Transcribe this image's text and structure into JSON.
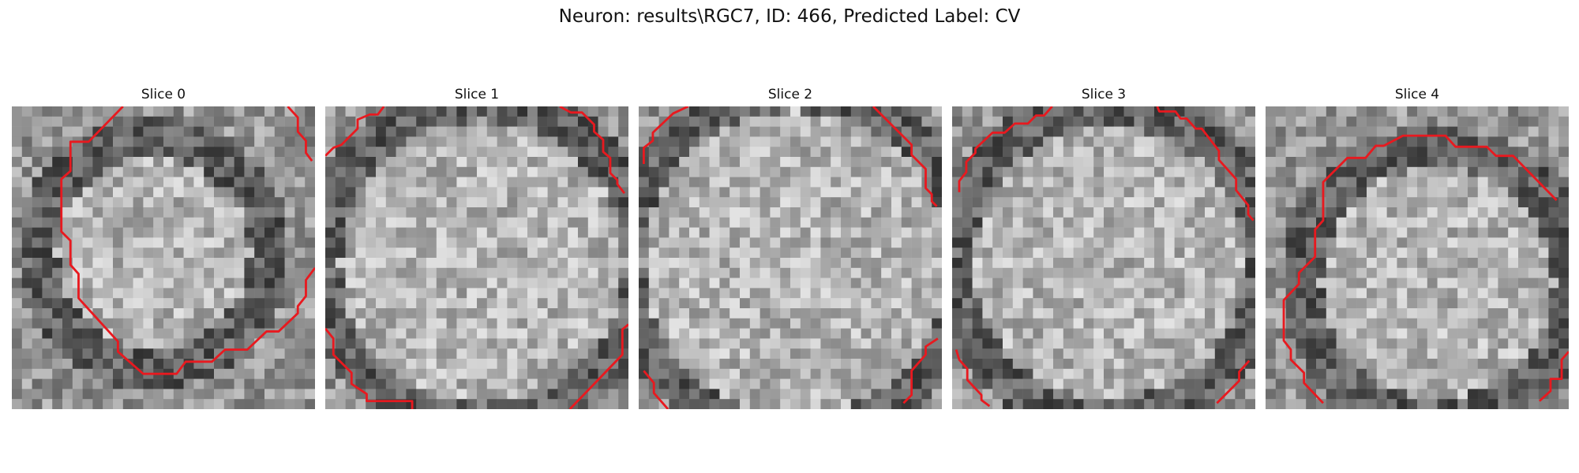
{
  "figure": {
    "title": "Neuron: results\\RGC7, ID: 466, Predicted Label: CV"
  },
  "grid_size": 30,
  "contour_color": "#e8191f",
  "slices": [
    {
      "title": "Slice 0",
      "contour_paths": [
        [
          [
            11,
            0
          ],
          [
            7.6,
            3.5
          ],
          [
            5.8,
            3.5
          ],
          [
            5.8,
            6.4
          ],
          [
            4.9,
            7.2
          ],
          [
            4.9,
            12.4
          ],
          [
            5.8,
            13.3
          ],
          [
            5.8,
            15.7
          ],
          [
            6.6,
            16.6
          ],
          [
            6.6,
            19
          ],
          [
            10.5,
            23.3
          ],
          [
            10.5,
            24.3
          ],
          [
            13,
            26.5
          ],
          [
            16.3,
            26.5
          ],
          [
            17.2,
            25.3
          ],
          [
            19.8,
            25.3
          ],
          [
            21.1,
            24.1
          ],
          [
            23.3,
            24.1
          ],
          [
            25.2,
            22.3
          ],
          [
            26.4,
            22.3
          ],
          [
            28.3,
            20.5
          ],
          [
            28.3,
            19.8
          ],
          [
            29.1,
            18.8
          ],
          [
            29.1,
            17.2
          ],
          [
            30,
            16
          ]
        ],
        [
          [
            27.3,
            0
          ],
          [
            28.3,
            1.1
          ],
          [
            28.3,
            2.5
          ],
          [
            29.1,
            3.4
          ],
          [
            29.1,
            4.6
          ],
          [
            29.7,
            5.4
          ]
        ]
      ]
    },
    {
      "title": "Slice 1",
      "contour_paths": [
        [
          [
            0,
            4.9
          ],
          [
            0.8,
            4.1
          ],
          [
            1.6,
            3.8
          ],
          [
            3.2,
            2.2
          ],
          [
            3.2,
            1.3
          ],
          [
            4.4,
            0.8
          ],
          [
            5.2,
            0.8
          ],
          [
            5.8,
            0
          ]
        ],
        [
          [
            23.2,
            0
          ],
          [
            24.3,
            0.6
          ],
          [
            25.4,
            0.6
          ],
          [
            26.6,
            1.8
          ],
          [
            26.6,
            2.5
          ],
          [
            27.5,
            3.3
          ],
          [
            27.5,
            4.5
          ],
          [
            28.2,
            5.1
          ],
          [
            28.2,
            6.6
          ],
          [
            28.9,
            7.3
          ],
          [
            28.9,
            7.7
          ],
          [
            29.6,
            8.6
          ]
        ],
        [
          [
            0,
            22
          ],
          [
            0.8,
            23
          ],
          [
            0.8,
            24.6
          ],
          [
            2.6,
            26.4
          ],
          [
            2.6,
            27.5
          ],
          [
            4.1,
            28.5
          ],
          [
            4.1,
            29.2
          ],
          [
            8.6,
            29.2
          ],
          [
            8.6,
            30
          ]
        ],
        [
          [
            24.2,
            30
          ],
          [
            29.4,
            24.6
          ],
          [
            29.4,
            22.1
          ],
          [
            30,
            21.6
          ]
        ]
      ]
    },
    {
      "title": "Slice 2",
      "contour_paths": [
        [
          [
            0.5,
            5.7
          ],
          [
            0.5,
            4.1
          ],
          [
            1.4,
            3.4
          ],
          [
            1.4,
            2.6
          ],
          [
            3.4,
            0.7
          ],
          [
            4.9,
            0
          ]
        ],
        [
          [
            23.2,
            0
          ],
          [
            27,
            3.8
          ],
          [
            27,
            4.8
          ],
          [
            28.4,
            6.2
          ],
          [
            28.4,
            8.1
          ],
          [
            29,
            8.7
          ],
          [
            29,
            9.4
          ],
          [
            29.5,
            9.9
          ]
        ],
        [
          [
            0.5,
            26.2
          ],
          [
            1.5,
            27.4
          ],
          [
            1.5,
            28.4
          ],
          [
            2.9,
            30
          ]
        ],
        [
          [
            26.2,
            29.4
          ],
          [
            27,
            28.6
          ],
          [
            27,
            26.2
          ],
          [
            28.4,
            24.6
          ],
          [
            28.4,
            23.8
          ],
          [
            29.6,
            23
          ]
        ]
      ]
    },
    {
      "title": "Slice 3",
      "contour_paths": [
        [
          [
            0.7,
            8.5
          ],
          [
            0.7,
            7.4
          ],
          [
            1.4,
            6.5
          ],
          [
            1.4,
            5.5
          ],
          [
            2.3,
            4.6
          ],
          [
            2.3,
            4.2
          ],
          [
            4,
            2.6
          ],
          [
            5.2,
            2.6
          ],
          [
            6.2,
            1.7
          ],
          [
            7.5,
            1.7
          ],
          [
            8.3,
            0.9
          ],
          [
            9.1,
            0.9
          ],
          [
            9.9,
            0
          ]
        ],
        [
          [
            20.3,
            0
          ],
          [
            20.5,
            0.5
          ],
          [
            22.1,
            0.5
          ],
          [
            22.6,
            1.2
          ],
          [
            23.2,
            1.2
          ],
          [
            24.1,
            2.2
          ],
          [
            24.7,
            2.2
          ],
          [
            26.4,
            4.4
          ],
          [
            26.4,
            5.3
          ],
          [
            28.1,
            7.2
          ],
          [
            28.1,
            8.3
          ],
          [
            29.3,
            9.8
          ],
          [
            29.3,
            10.7
          ],
          [
            29.8,
            11.3
          ]
        ],
        [
          [
            0.4,
            24.1
          ],
          [
            0.7,
            25.1
          ],
          [
            1.5,
            26
          ],
          [
            1.5,
            27.1
          ],
          [
            2.9,
            28.6
          ],
          [
            2.9,
            29.1
          ],
          [
            3.7,
            29.7
          ]
        ],
        [
          [
            26.2,
            29.4
          ],
          [
            28.4,
            27.2
          ],
          [
            28.4,
            26.3
          ],
          [
            29.4,
            25.2
          ]
        ]
      ]
    },
    {
      "title": "Slice 4",
      "contour_paths": [
        [
          [
            5.7,
            29.4
          ],
          [
            3.8,
            27.4
          ],
          [
            3.8,
            26.4
          ],
          [
            2.5,
            25.1
          ],
          [
            2.5,
            24.1
          ],
          [
            1.8,
            23.2
          ],
          [
            1.8,
            19.2
          ],
          [
            3.3,
            17.6
          ],
          [
            3.3,
            16.5
          ],
          [
            4.9,
            14.9
          ],
          [
            4.9,
            12.2
          ],
          [
            5.7,
            11.3
          ],
          [
            5.7,
            7.5
          ],
          [
            8.1,
            5.1
          ],
          [
            9.9,
            5.1
          ],
          [
            10.9,
            3.9
          ],
          [
            11.7,
            3.9
          ],
          [
            13.6,
            2.9
          ],
          [
            17.8,
            2.9
          ],
          [
            18.8,
            4
          ],
          [
            21.9,
            4
          ],
          [
            22.8,
            4.9
          ],
          [
            24.5,
            4.9
          ],
          [
            28.8,
            9.3
          ]
        ],
        [
          [
            27.1,
            29.2
          ],
          [
            28.2,
            28.2
          ],
          [
            28.2,
            27
          ],
          [
            29.3,
            27
          ],
          [
            29.3,
            25.1
          ],
          [
            30,
            24.3
          ]
        ]
      ]
    }
  ]
}
